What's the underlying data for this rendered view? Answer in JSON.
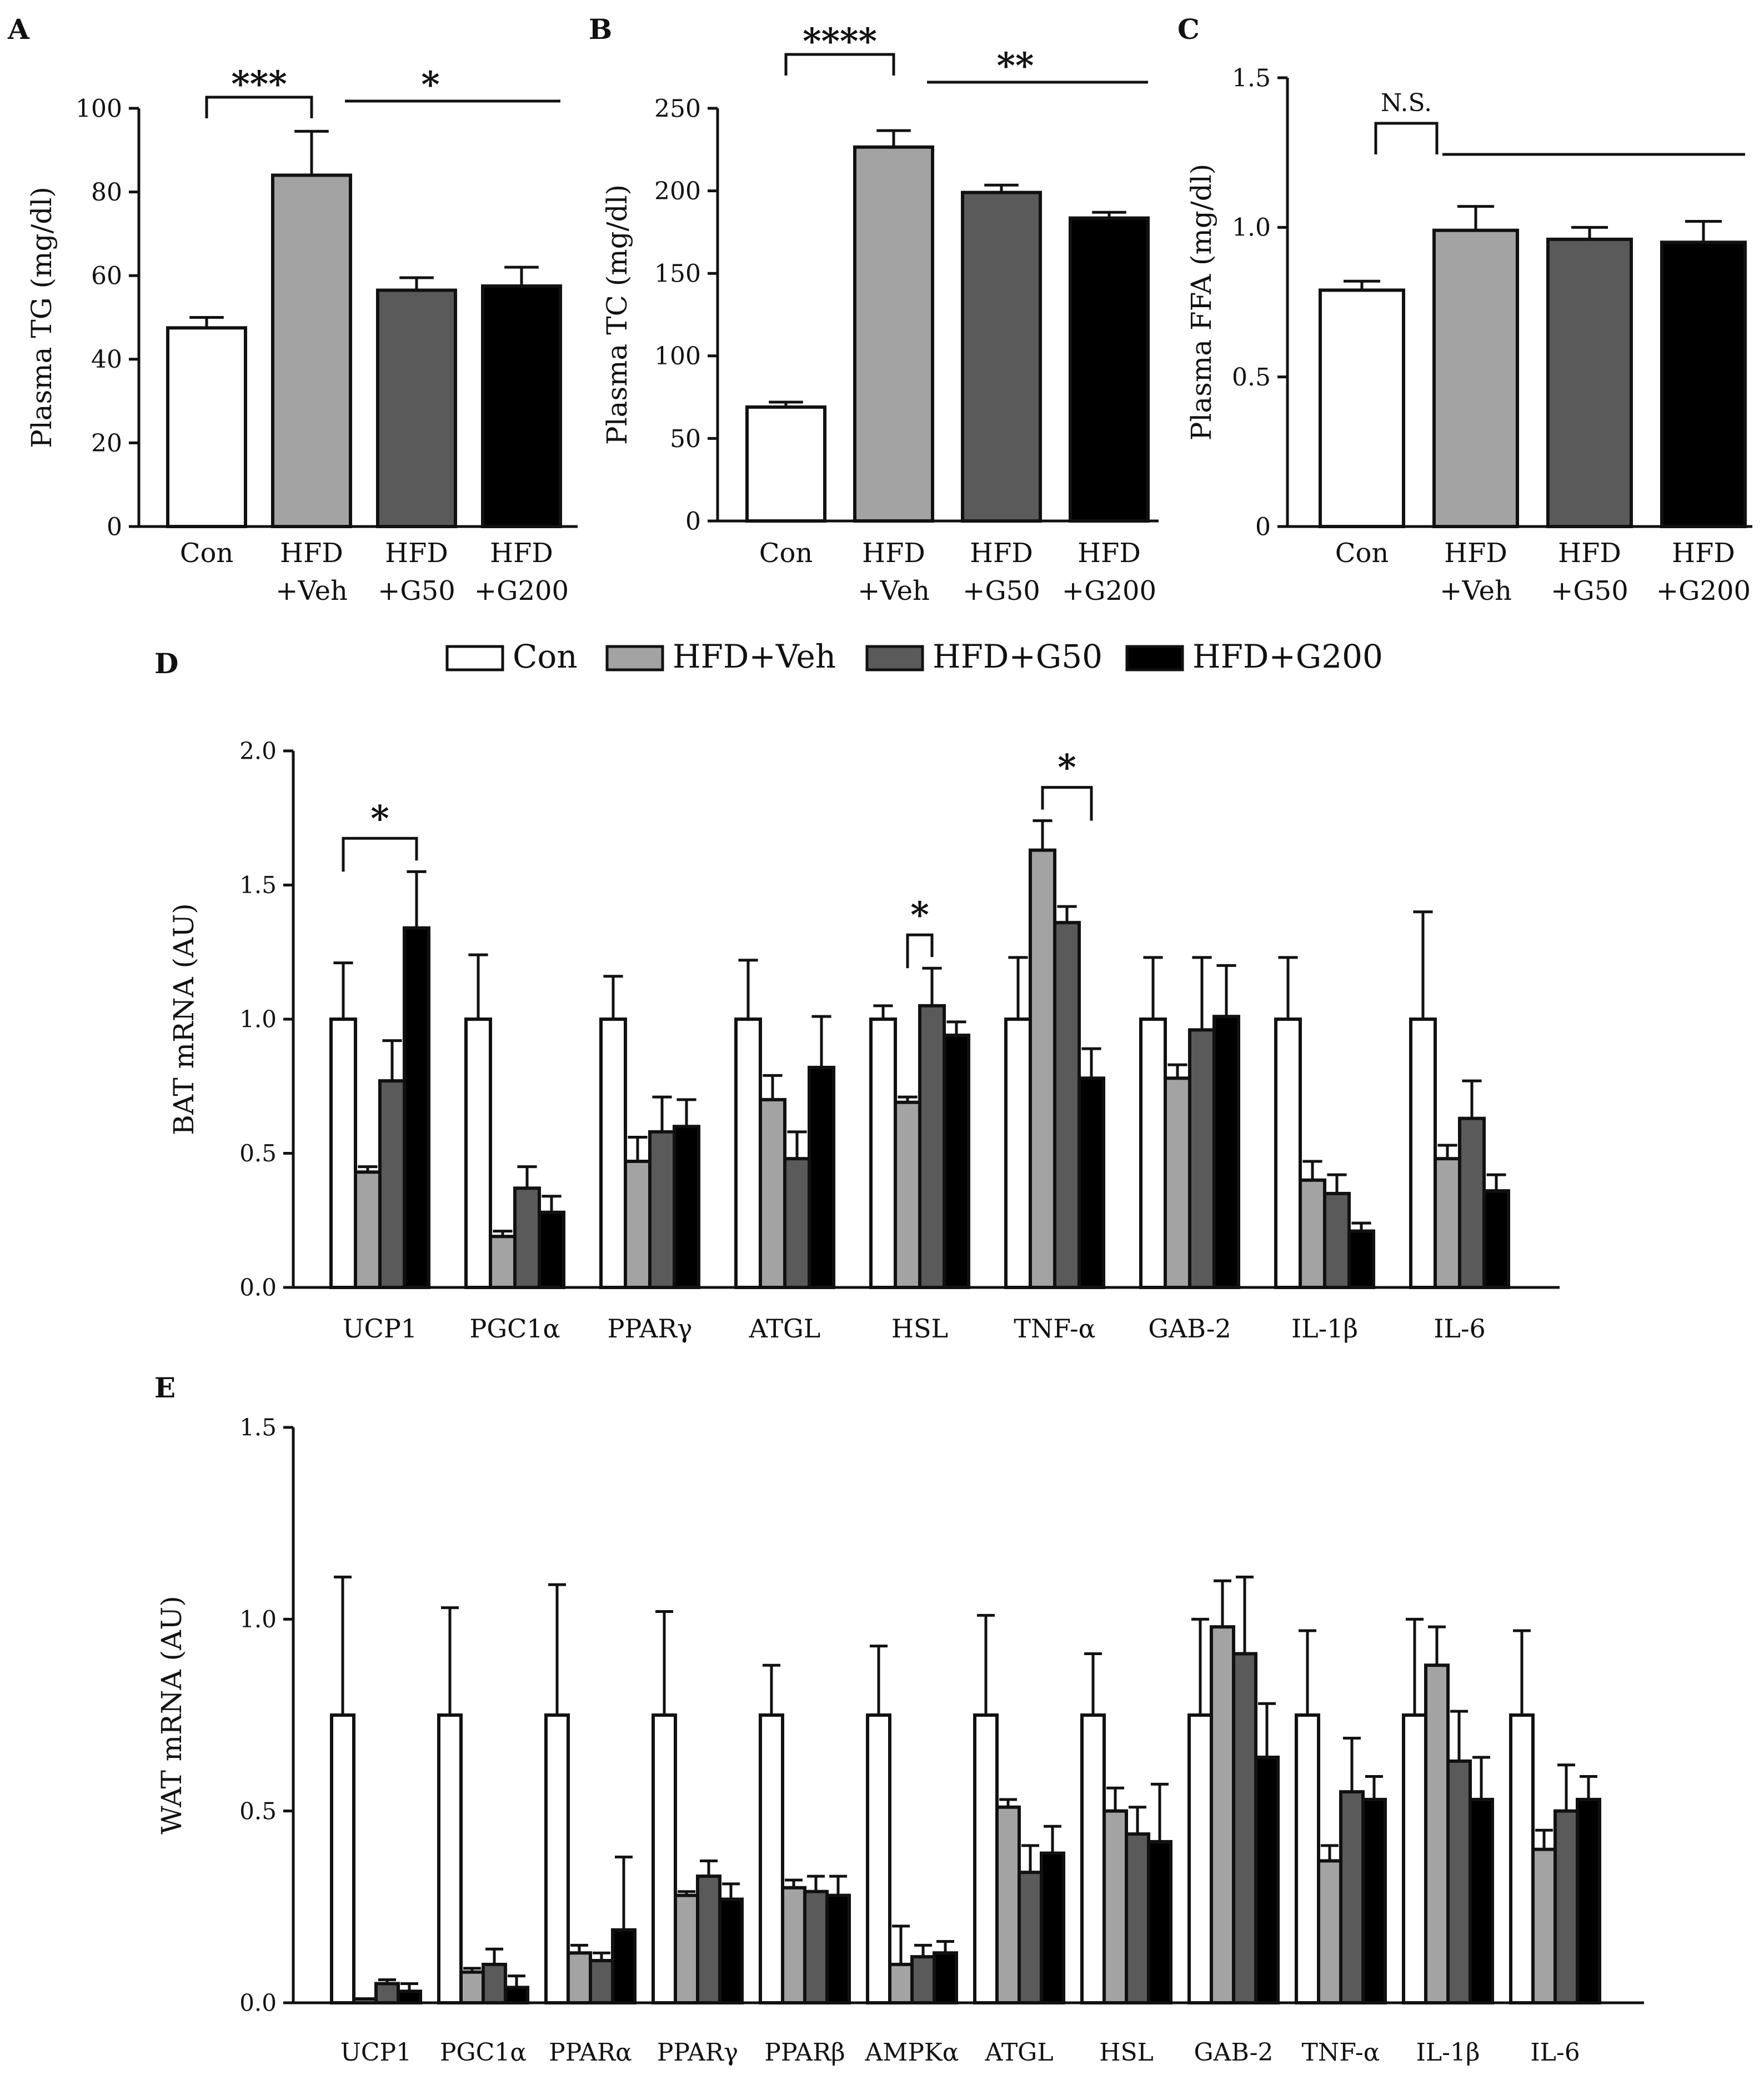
{
  "series_names": [
    "Con",
    "HFD+Veh",
    "HFD+G50",
    "HFD+G200"
  ],
  "series_colors": [
    "#ffffff",
    "#a3a3a3",
    "#5a5a5a",
    "#000000"
  ],
  "chart_data": [
    {
      "panel": "A",
      "type": "bar",
      "ylabel": "Plasma TG (mg/dl)",
      "ylim": [
        0,
        100
      ],
      "yticks": [
        "0",
        "20",
        "40",
        "60",
        "80",
        "100"
      ],
      "categories": [
        [
          "Con"
        ],
        [
          "HFD",
          "+Veh"
        ],
        [
          "HFD",
          "+G50"
        ],
        [
          "HFD",
          "+G200"
        ]
      ],
      "values": [
        47.5,
        84,
        56.5,
        57.5
      ],
      "errors": [
        2.5,
        10.5,
        3,
        4.5
      ],
      "annotations": [
        {
          "text": "***",
          "type": "bracket",
          "from": 0,
          "to": 1
        },
        {
          "text": "*",
          "type": "line",
          "from": 1,
          "to": 3
        }
      ]
    },
    {
      "panel": "B",
      "type": "bar",
      "ylabel": "Plasma TC (mg/dl)",
      "ylim": [
        0,
        250
      ],
      "yticks": [
        "0",
        "50",
        "100",
        "150",
        "200",
        "250"
      ],
      "categories": [
        [
          "Con"
        ],
        [
          "HFD",
          "+Veh"
        ],
        [
          "HFD",
          "+G50"
        ],
        [
          "HFD",
          "+G200"
        ]
      ],
      "values": [
        69,
        226.5,
        199,
        183.5
      ],
      "errors": [
        3,
        10,
        4.5,
        3.5
      ],
      "annotations": [
        {
          "text": "****",
          "type": "bracket",
          "from": 0,
          "to": 1
        },
        {
          "text": "**",
          "type": "line",
          "from": 1,
          "to": 3
        }
      ]
    },
    {
      "panel": "C",
      "type": "bar",
      "ylabel": "Plasma FFA (mg/dl)",
      "ylim": [
        0,
        1.5
      ],
      "yticks": [
        "0",
        "0.5",
        "1.0",
        "1.5"
      ],
      "categories": [
        [
          "Con"
        ],
        [
          "HFD",
          "+Veh"
        ],
        [
          "HFD",
          "+G50"
        ],
        [
          "HFD",
          "+G200"
        ]
      ],
      "values": [
        0.79,
        0.99,
        0.96,
        0.95
      ],
      "errors": [
        0.03,
        0.08,
        0.04,
        0.07
      ],
      "annotations": [
        {
          "text": "N.S.",
          "type": "step",
          "from": 0,
          "to": 3
        }
      ]
    },
    {
      "panel": "D",
      "type": "bar",
      "ylabel": "BAT mRNA (AU)",
      "ylim": [
        0,
        2.0
      ],
      "yticks": [
        "0.0",
        "0.5",
        "1.0",
        "1.5",
        "2.0"
      ],
      "categories": [
        "UCP1",
        "PGC1α",
        "PPARγ",
        "ATGL",
        "HSL",
        "TNF-α",
        "GAB-2",
        "IL-1β",
        "IL-6"
      ],
      "series": [
        {
          "name": "Con",
          "values": [
            1.0,
            1.0,
            1.0,
            1.0,
            1.0,
            1.0,
            1.0,
            1.0,
            1.0
          ],
          "errors": [
            0.21,
            0.24,
            0.16,
            0.22,
            0.05,
            0.23,
            0.23,
            0.23,
            0.4
          ]
        },
        {
          "name": "HFD+Veh",
          "values": [
            0.43,
            0.19,
            0.47,
            0.7,
            0.69,
            1.63,
            0.78,
            0.4,
            0.48
          ],
          "errors": [
            0.02,
            0.02,
            0.09,
            0.09,
            0.02,
            0.11,
            0.05,
            0.07,
            0.05
          ]
        },
        {
          "name": "HFD+G50",
          "values": [
            0.77,
            0.37,
            0.58,
            0.48,
            1.05,
            1.36,
            0.96,
            0.35,
            0.63
          ],
          "errors": [
            0.15,
            0.08,
            0.13,
            0.1,
            0.14,
            0.06,
            0.27,
            0.07,
            0.14
          ]
        },
        {
          "name": "HFD+G200",
          "values": [
            1.34,
            0.28,
            0.6,
            0.82,
            0.94,
            0.78,
            1.01,
            0.21,
            0.36
          ],
          "errors": [
            0.21,
            0.06,
            0.1,
            0.19,
            0.05,
            0.11,
            0.19,
            0.03,
            0.06
          ]
        }
      ],
      "annotations": [
        {
          "text": "*",
          "category": 0,
          "from_series": 0,
          "to_series": 3
        },
        {
          "text": "*",
          "category": 4,
          "from_series": 1,
          "to_series": 2
        },
        {
          "text": "*",
          "category": 5,
          "from_series": 1,
          "to_series": 3
        }
      ]
    },
    {
      "panel": "E",
      "type": "bar",
      "ylabel": "WAT mRNA (AU)",
      "ylim": [
        0,
        1.5
      ],
      "yticks": [
        "0.0",
        "0.5",
        "1.0",
        "1.5"
      ],
      "categories": [
        "UCP1",
        "PGC1α",
        "PPARα",
        "PPARγ",
        "PPARβ",
        "AMPKα",
        "ATGL",
        "HSL",
        "GAB-2",
        "TNF-α",
        "IL-1β",
        "IL-6"
      ],
      "series": [
        {
          "name": "Con",
          "values": [
            0.75,
            0.75,
            0.75,
            0.75,
            0.75,
            0.75,
            0.75,
            0.75,
            0.75,
            0.75,
            0.75,
            0.75
          ],
          "errors": [
            0.36,
            0.28,
            0.34,
            0.27,
            0.13,
            0.18,
            0.26,
            0.16,
            0.25,
            0.22,
            0.25,
            0.22
          ]
        },
        {
          "name": "HFD+Veh",
          "values": [
            0.01,
            0.08,
            0.13,
            0.28,
            0.3,
            0.1,
            0.51,
            0.5,
            0.98,
            0.37,
            0.88,
            0.4
          ],
          "errors": [
            0.0,
            0.01,
            0.02,
            0.01,
            0.02,
            0.1,
            0.02,
            0.06,
            0.12,
            0.04,
            0.1,
            0.05
          ]
        },
        {
          "name": "HFD+G50",
          "values": [
            0.05,
            0.1,
            0.11,
            0.33,
            0.29,
            0.12,
            0.34,
            0.44,
            0.91,
            0.55,
            0.63,
            0.5
          ],
          "errors": [
            0.01,
            0.04,
            0.02,
            0.04,
            0.04,
            0.03,
            0.07,
            0.07,
            0.2,
            0.14,
            0.13,
            0.12
          ]
        },
        {
          "name": "HFD+G200",
          "values": [
            0.03,
            0.04,
            0.19,
            0.27,
            0.28,
            0.13,
            0.39,
            0.42,
            0.64,
            0.53,
            0.53,
            0.53
          ],
          "errors": [
            0.02,
            0.03,
            0.19,
            0.04,
            0.05,
            0.03,
            0.07,
            0.15,
            0.14,
            0.06,
            0.11,
            0.06
          ]
        }
      ]
    }
  ]
}
